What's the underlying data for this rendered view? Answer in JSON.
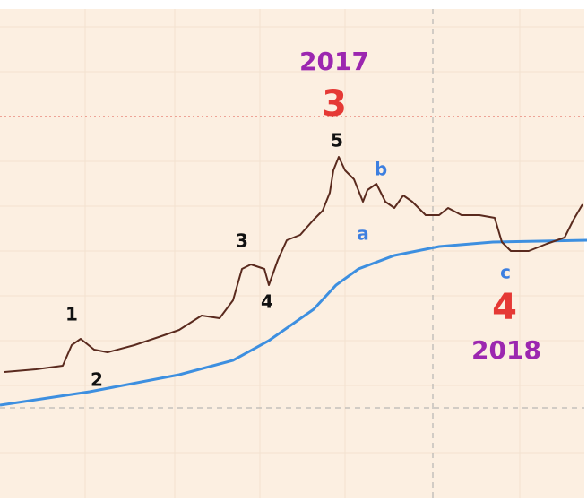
{
  "annotations": {
    "year_top": "2017",
    "wave_top": "3",
    "peak": "5",
    "sub_b": "b",
    "sub_a": "a",
    "minor_3": "3",
    "minor_4": "4",
    "minor_1": "1",
    "minor_2": "2",
    "sub_c": "c",
    "wave_bottom": "4",
    "year_bottom": "2018"
  }
}
